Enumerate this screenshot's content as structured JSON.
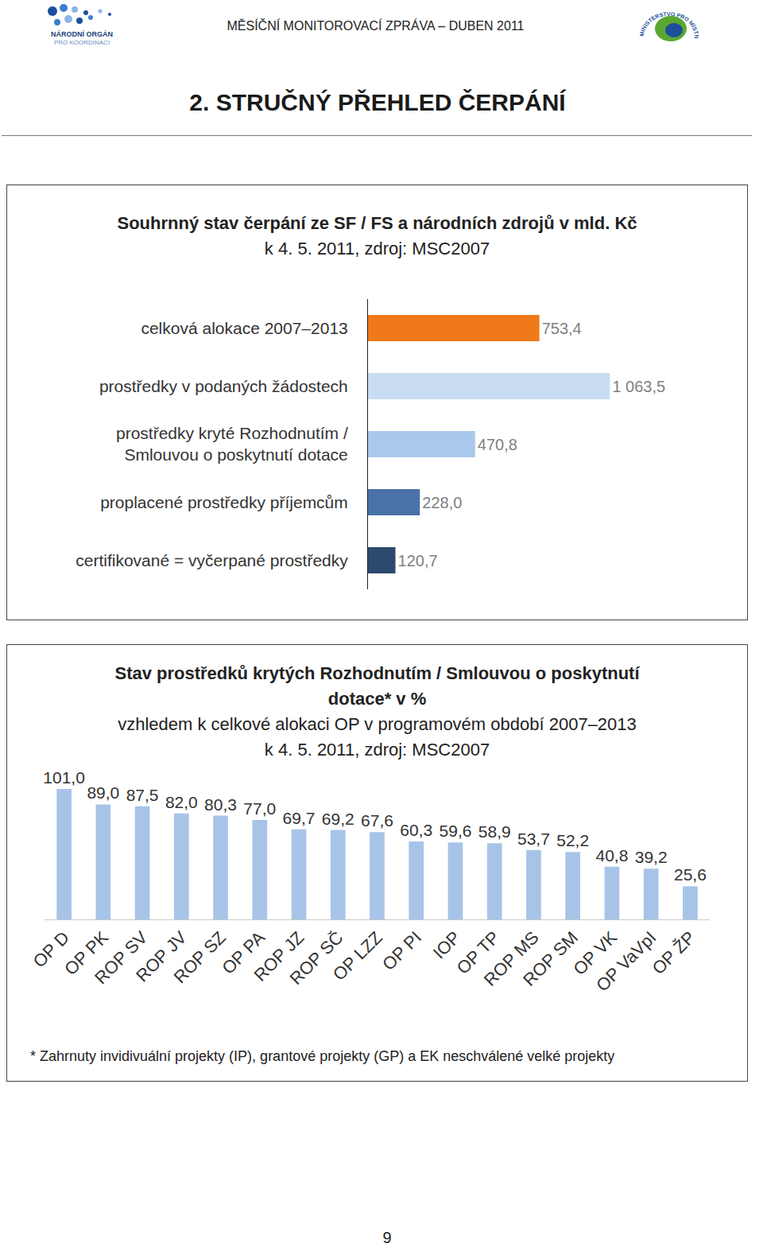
{
  "header": {
    "text": "MĚSÍČNÍ MONITOROVACÍ ZPRÁVA – DUBEN 2011",
    "logo_left": [
      "NÁRODNÍ ORGÁN",
      "PRO KOORDINACI"
    ],
    "logo_right": "MINISTERSTVO PRO MÍSTNÍ ROZVOJ"
  },
  "section_title": "2. STRUČNÝ PŘEHLED ČERPÁNÍ",
  "chart_data": [
    {
      "type": "bar",
      "orientation": "horizontal",
      "title": "Souhrnný stav čerpání ze SF / FS a národních zdrojů v mld. Kč",
      "subtitle": "k 4. 5. 2011, zdroj: MSC2007",
      "categories": [
        "celková alokace 2007–2013",
        "prostředky v podaných žádostech",
        "prostředky kryté Rozhodnutím / Smlouvou o poskytnutí dotace",
        "proplacené prostředky příjemcům",
        "certifikované = vyčerpané prostředky"
      ],
      "values": [
        753.4,
        1063.5,
        470.8,
        228.0,
        120.7
      ],
      "value_labels": [
        "753,4",
        "1 063,5",
        "470,8",
        "228,0",
        "120,7"
      ],
      "colors": [
        "#f07a1a",
        "#c9dcf2",
        "#a9c8ec",
        "#4a72a8",
        "#2d4a6e"
      ],
      "xlim": [
        0,
        1600
      ],
      "data_labels": true,
      "tick_labels": "y",
      "grid": false
    },
    {
      "type": "bar",
      "title": "Stav prostředků krytých Rozhodnutím / Smlouvou o poskytnutí dotace* v %",
      "subtitle": [
        "vzhledem k celkové alokaci OP v programovém období 2007–2013",
        "k 4. 5. 2011, zdroj: MSC2007"
      ],
      "categories": [
        "OP D",
        "OP PK",
        "ROP SV",
        "ROP JV",
        "ROP SZ",
        "OP PA",
        "ROP JZ",
        "ROP SČ",
        "OP LZZ",
        "OP PI",
        "IOP",
        "OP TP",
        "ROP MS",
        "ROP SM",
        "OP VK",
        "OP VaVpI",
        "OP ŽP"
      ],
      "values": [
        101.0,
        89.0,
        87.5,
        82.0,
        80.3,
        77.0,
        69.7,
        69.2,
        67.6,
        60.3,
        59.6,
        58.9,
        53.7,
        52.2,
        40.8,
        39.2,
        25.6
      ],
      "value_labels": [
        "101,0",
        "89,0",
        "87,5",
        "82,0",
        "80,3",
        "77,0",
        "69,7",
        "69,2",
        "67,6",
        "60,3",
        "59,6",
        "58,9",
        "53,7",
        "52,2",
        "40,8",
        "39,2",
        "25,6"
      ],
      "color": "#a7c4e8",
      "ylim": [
        0,
        120
      ],
      "data_labels": true,
      "tick_labels": "x",
      "grid": false
    }
  ],
  "footnote": "* Zahrnuty invidivuální projekty (IP), grantové projekty (GP) a EK neschválené velké projekty",
  "page_number": 9
}
